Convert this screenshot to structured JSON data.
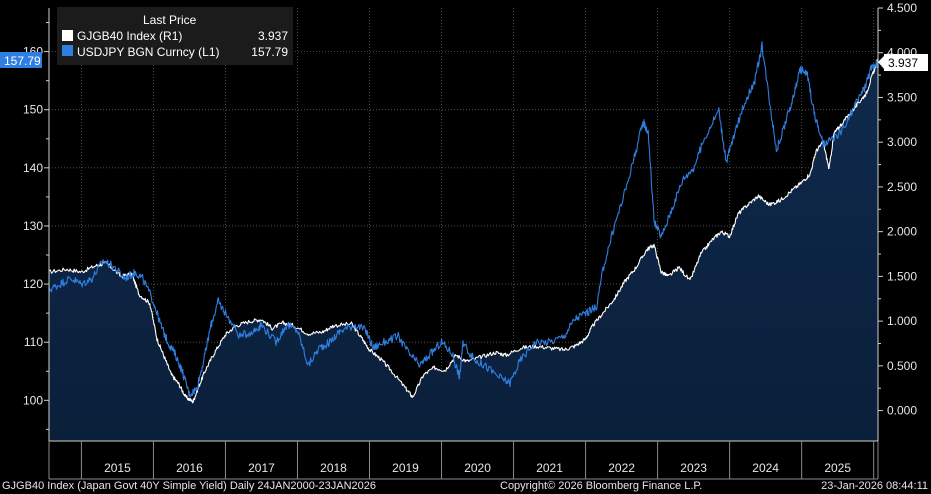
{
  "chart_data": {
    "type": "line",
    "title": "GJGB40 Index (Japan Govt 40Y Simple Yield) Daily 24JAN2000-23JAN2026",
    "copyright": "Copyright© 2026 Bloomberg Finance L.P.",
    "timestamp": "23-Jan-2026 08:44:11",
    "legend_header": "Last Price",
    "x_labels": [
      "2015",
      "2016",
      "2017",
      "2018",
      "2019",
      "2020",
      "2021",
      "2022",
      "2023",
      "2024",
      "2025"
    ],
    "x_range": [
      2014.55,
      2026.06
    ],
    "left_axis": {
      "ticks": [
        "100",
        "110",
        "120",
        "130",
        "140",
        "150",
        "160"
      ],
      "range": [
        93,
        167.5
      ]
    },
    "right_axis": {
      "ticks": [
        "0.000",
        "0.500",
        "1.000",
        "1.500",
        "2.000",
        "2.500",
        "3.000",
        "3.500",
        "4.000",
        "4.500"
      ],
      "range": [
        -0.34,
        4.5
      ]
    },
    "series": [
      {
        "name": "GJGB40 Index  (R1)",
        "last": "3.937",
        "badge": "3.937",
        "axis": "right",
        "color": "#ffffff",
        "filled": true,
        "points": [
          [
            2014.55,
            1.55
          ],
          [
            2014.8,
            1.58
          ],
          [
            2015.0,
            1.55
          ],
          [
            2015.2,
            1.62
          ],
          [
            2015.35,
            1.65
          ],
          [
            2015.55,
            1.5
          ],
          [
            2015.7,
            1.53
          ],
          [
            2015.8,
            1.3
          ],
          [
            2015.95,
            1.2
          ],
          [
            2016.05,
            0.8
          ],
          [
            2016.15,
            0.6
          ],
          [
            2016.25,
            0.4
          ],
          [
            2016.35,
            0.3
          ],
          [
            2016.45,
            0.15
          ],
          [
            2016.55,
            0.1
          ],
          [
            2016.62,
            0.25
          ],
          [
            2016.72,
            0.45
          ],
          [
            2016.85,
            0.65
          ],
          [
            2017.0,
            0.85
          ],
          [
            2017.15,
            0.95
          ],
          [
            2017.35,
            1.0
          ],
          [
            2017.5,
            1.02
          ],
          [
            2017.65,
            0.92
          ],
          [
            2017.8,
            0.98
          ],
          [
            2017.95,
            0.95
          ],
          [
            2018.15,
            0.86
          ],
          [
            2018.35,
            0.88
          ],
          [
            2018.5,
            0.95
          ],
          [
            2018.75,
            0.97
          ],
          [
            2018.9,
            0.8
          ],
          [
            2019.0,
            0.68
          ],
          [
            2019.15,
            0.58
          ],
          [
            2019.3,
            0.45
          ],
          [
            2019.5,
            0.25
          ],
          [
            2019.6,
            0.15
          ],
          [
            2019.75,
            0.4
          ],
          [
            2019.9,
            0.48
          ],
          [
            2020.05,
            0.45
          ],
          [
            2020.2,
            0.62
          ],
          [
            2020.35,
            0.55
          ],
          [
            2020.55,
            0.6
          ],
          [
            2020.75,
            0.65
          ],
          [
            2020.9,
            0.62
          ],
          [
            2021.1,
            0.7
          ],
          [
            2021.3,
            0.72
          ],
          [
            2021.5,
            0.7
          ],
          [
            2021.7,
            0.68
          ],
          [
            2021.85,
            0.72
          ],
          [
            2022.0,
            0.8
          ],
          [
            2022.1,
            0.95
          ],
          [
            2022.25,
            1.1
          ],
          [
            2022.4,
            1.25
          ],
          [
            2022.55,
            1.45
          ],
          [
            2022.7,
            1.6
          ],
          [
            2022.85,
            1.8
          ],
          [
            2022.95,
            1.85
          ],
          [
            2023.05,
            1.55
          ],
          [
            2023.15,
            1.5
          ],
          [
            2023.3,
            1.6
          ],
          [
            2023.45,
            1.45
          ],
          [
            2023.6,
            1.75
          ],
          [
            2023.75,
            1.9
          ],
          [
            2023.88,
            2.0
          ],
          [
            2024.0,
            1.95
          ],
          [
            2024.12,
            2.2
          ],
          [
            2024.25,
            2.3
          ],
          [
            2024.4,
            2.4
          ],
          [
            2024.55,
            2.3
          ],
          [
            2024.7,
            2.35
          ],
          [
            2024.85,
            2.45
          ],
          [
            2025.0,
            2.55
          ],
          [
            2025.12,
            2.65
          ],
          [
            2025.2,
            2.9
          ],
          [
            2025.3,
            3.0
          ],
          [
            2025.38,
            2.7
          ],
          [
            2025.45,
            3.1
          ],
          [
            2025.55,
            3.2
          ],
          [
            2025.7,
            3.35
          ],
          [
            2025.8,
            3.45
          ],
          [
            2025.9,
            3.55
          ],
          [
            2025.98,
            3.75
          ],
          [
            2026.03,
            3.85
          ],
          [
            2026.06,
            3.937
          ]
        ]
      },
      {
        "name": "USDJPY BGN Curncy  (L1)",
        "last": "157.79",
        "badge": "157.79",
        "axis": "left",
        "color": "#2f7fe3",
        "filled": false,
        "points": [
          [
            2014.55,
            119
          ],
          [
            2014.7,
            120
          ],
          [
            2014.85,
            121
          ],
          [
            2015.0,
            120
          ],
          [
            2015.15,
            121
          ],
          [
            2015.3,
            124
          ],
          [
            2015.45,
            123
          ],
          [
            2015.6,
            121
          ],
          [
            2015.75,
            122
          ],
          [
            2015.85,
            121
          ],
          [
            2016.0,
            117
          ],
          [
            2016.1,
            113
          ],
          [
            2016.2,
            110
          ],
          [
            2016.3,
            108
          ],
          [
            2016.4,
            105
          ],
          [
            2016.5,
            101
          ],
          [
            2016.6,
            102
          ],
          [
            2016.7,
            107
          ],
          [
            2016.8,
            113
          ],
          [
            2016.9,
            117
          ],
          [
            2017.0,
            115
          ],
          [
            2017.2,
            111
          ],
          [
            2017.4,
            112
          ],
          [
            2017.5,
            113
          ],
          [
            2017.7,
            110
          ],
          [
            2017.85,
            113
          ],
          [
            2018.0,
            112
          ],
          [
            2018.15,
            106
          ],
          [
            2018.3,
            109
          ],
          [
            2018.45,
            110
          ],
          [
            2018.6,
            112
          ],
          [
            2018.8,
            113
          ],
          [
            2018.95,
            112
          ],
          [
            2019.05,
            109
          ],
          [
            2019.2,
            110
          ],
          [
            2019.4,
            111
          ],
          [
            2019.55,
            108
          ],
          [
            2019.7,
            106
          ],
          [
            2019.85,
            108
          ],
          [
            2020.0,
            110
          ],
          [
            2020.15,
            108
          ],
          [
            2020.25,
            104
          ],
          [
            2020.3,
            110
          ],
          [
            2020.45,
            107
          ],
          [
            2020.6,
            106
          ],
          [
            2020.8,
            104
          ],
          [
            2020.95,
            103
          ],
          [
            2021.1,
            107
          ],
          [
            2021.3,
            110
          ],
          [
            2021.5,
            110
          ],
          [
            2021.7,
            111
          ],
          [
            2021.85,
            114
          ],
          [
            2022.0,
            115
          ],
          [
            2022.15,
            116
          ],
          [
            2022.25,
            123
          ],
          [
            2022.4,
            130
          ],
          [
            2022.55,
            136
          ],
          [
            2022.7,
            143
          ],
          [
            2022.8,
            148
          ],
          [
            2022.87,
            146
          ],
          [
            2022.95,
            131
          ],
          [
            2023.05,
            128
          ],
          [
            2023.2,
            133
          ],
          [
            2023.35,
            138
          ],
          [
            2023.5,
            140
          ],
          [
            2023.65,
            145
          ],
          [
            2023.85,
            150
          ],
          [
            2023.95,
            141
          ],
          [
            2024.05,
            145
          ],
          [
            2024.2,
            151
          ],
          [
            2024.35,
            155
          ],
          [
            2024.45,
            161
          ],
          [
            2024.55,
            152
          ],
          [
            2024.65,
            143
          ],
          [
            2024.78,
            148
          ],
          [
            2024.88,
            152
          ],
          [
            2024.98,
            157
          ],
          [
            2025.08,
            156
          ],
          [
            2025.18,
            149
          ],
          [
            2025.3,
            144
          ],
          [
            2025.45,
            145
          ],
          [
            2025.6,
            147
          ],
          [
            2025.75,
            151
          ],
          [
            2025.88,
            154
          ],
          [
            2025.96,
            157
          ],
          [
            2026.03,
            158
          ],
          [
            2026.06,
            157.79
          ]
        ]
      }
    ]
  }
}
